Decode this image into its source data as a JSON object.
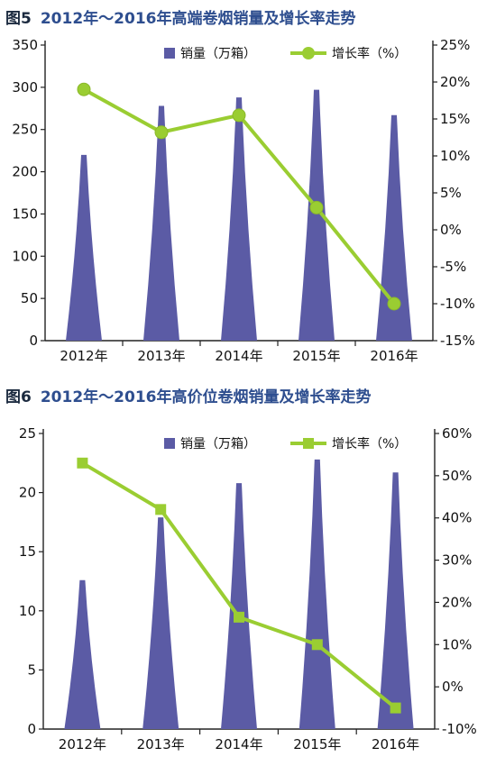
{
  "chart_data": [
    {
      "type": "bar",
      "figure_label": "图5",
      "title": "2012年～2016年高端卷烟销量及增长率走势",
      "categories": [
        "2012年",
        "2013年",
        "2014年",
        "2015年",
        "2016年"
      ],
      "series": [
        {
          "name": "销量（万箱）",
          "type": "bar",
          "axis": "left",
          "color": "#5b5ba5",
          "values": [
            220,
            278,
            288,
            297,
            267
          ]
        },
        {
          "name": "增长率（%）",
          "type": "line",
          "axis": "right",
          "color": "#9acd32",
          "values": [
            19,
            13.2,
            15.5,
            3,
            -10
          ]
        }
      ],
      "ylim": [
        0,
        350
      ],
      "yticks": [
        "0",
        "50",
        "100",
        "150",
        "200",
        "250",
        "300",
        "350"
      ],
      "y2lim": [
        -15,
        25
      ],
      "y2ticks": [
        "-15%",
        "-10%",
        "-5%",
        "0%",
        "5%",
        "10%",
        "15%",
        "20%",
        "25%"
      ],
      "legend_position": "top-center",
      "grid": false
    },
    {
      "type": "bar",
      "figure_label": "图6",
      "title": "2012年～2016年高价位卷烟销量及增长率走势",
      "categories": [
        "2012年",
        "2013年",
        "2014年",
        "2015年",
        "2016年"
      ],
      "series": [
        {
          "name": "销量（万箱）",
          "type": "bar",
          "axis": "left",
          "color": "#5b5ba5",
          "values": [
            12.6,
            17.9,
            20.8,
            22.8,
            21.7
          ]
        },
        {
          "name": "增长率（%）",
          "type": "line",
          "axis": "right",
          "color": "#9acd32",
          "values": [
            53,
            42,
            16.5,
            10,
            -5
          ]
        }
      ],
      "ylim": [
        0,
        25
      ],
      "yticks": [
        "0",
        "5",
        "10",
        "15",
        "20",
        "25"
      ],
      "y2lim": [
        -10,
        60
      ],
      "y2ticks": [
        "-10%",
        "0%",
        "10%",
        "20%",
        "30%",
        "40%",
        "50%",
        "60%"
      ],
      "legend_position": "top-center",
      "grid": false
    }
  ]
}
